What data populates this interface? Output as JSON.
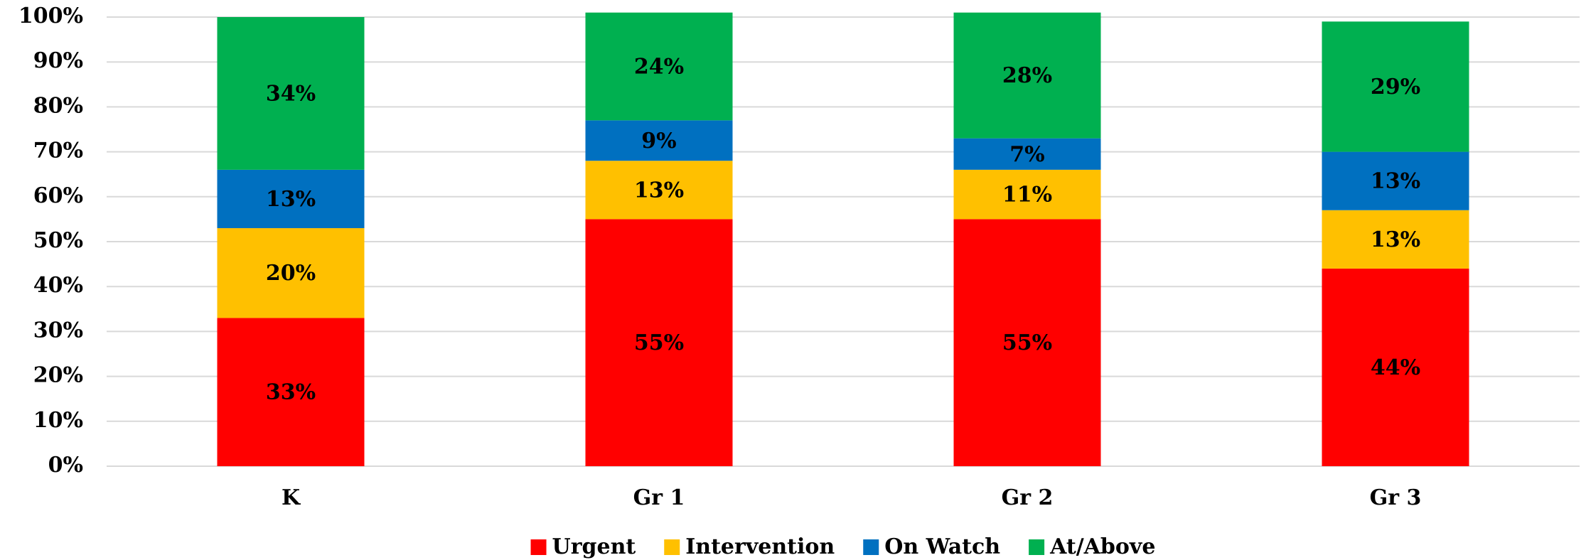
{
  "chart_data": {
    "type": "stacked_bar",
    "categories": [
      "K",
      "Gr 1",
      "Gr 2",
      "Gr 3"
    ],
    "series": [
      {
        "name": "Urgent",
        "color": "#ff0000",
        "values": [
          33,
          55,
          55,
          44
        ],
        "value_labels": [
          "33%",
          "55%",
          "55%",
          "44%"
        ]
      },
      {
        "name": "Intervention",
        "color": "#ffc000",
        "values": [
          20,
          13,
          11,
          13
        ],
        "value_labels": [
          "20%",
          "13%",
          "11%",
          "13%"
        ]
      },
      {
        "name": "On Watch",
        "color": "#0070c0",
        "values": [
          13,
          9,
          7,
          13
        ],
        "value_labels": [
          "13%",
          "9%",
          "7%",
          "13%"
        ]
      },
      {
        "name": "At/Above",
        "color": "#00b050",
        "values": [
          34,
          24,
          28,
          29
        ],
        "value_labels": [
          "34%",
          "24%",
          "28%",
          "29%"
        ]
      }
    ],
    "ylim": [
      0,
      100
    ],
    "yticks": [
      {
        "value": 0,
        "label": "0%"
      },
      {
        "value": 10,
        "label": "10%"
      },
      {
        "value": 20,
        "label": "20%"
      },
      {
        "value": 30,
        "label": "30%"
      },
      {
        "value": 40,
        "label": "40%"
      },
      {
        "value": 50,
        "label": "50%"
      },
      {
        "value": 60,
        "label": "60%"
      },
      {
        "value": 70,
        "label": "70%"
      },
      {
        "value": 80,
        "label": "80%"
      },
      {
        "value": 90,
        "label": "90%"
      },
      {
        "value": 100,
        "label": "100%"
      }
    ],
    "grid": true,
    "legend": "bottom"
  }
}
